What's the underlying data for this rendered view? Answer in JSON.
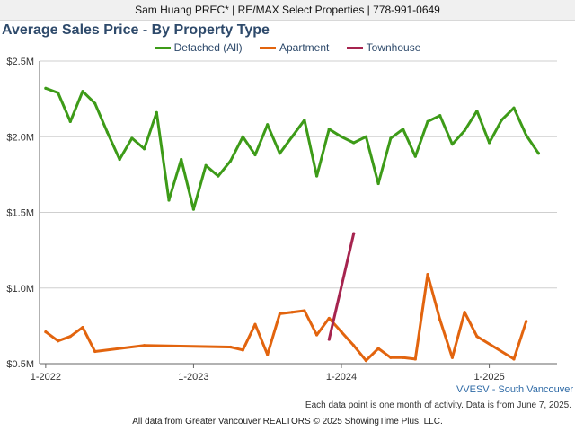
{
  "header": {
    "text": "Sam Huang PREC* | RE/MAX Select Properties | 778-991-0649"
  },
  "region_label": "VVESV - South Vancouver",
  "note": "Each data point is one month of activity. Data is from June 7, 2025.",
  "footer": "All data from Greater Vancouver REALTORS © 2025 ShowingTime Plus, LLC.",
  "chart_data": {
    "type": "line",
    "title": "Average Sales Price - By Property Type",
    "legend_position": "top-center",
    "x_ticks": [
      "1-2022",
      "1-2023",
      "1-2024",
      "1-2025"
    ],
    "y_ticks": [
      "$0.5M",
      "$1.0M",
      "$1.5M",
      "$2.0M",
      "$2.5M"
    ],
    "ylim": [
      0.5,
      2.5
    ],
    "xlim": [
      -0.5,
      41.5
    ],
    "grid": true,
    "series": [
      {
        "name": "Detached (All)",
        "color": "#3d9b18",
        "x": [
          0,
          1,
          2,
          3,
          4,
          5,
          6,
          7,
          8,
          9,
          10,
          11,
          12,
          13,
          14,
          15,
          16,
          17,
          18,
          19,
          20,
          21,
          22,
          23,
          24,
          25,
          26,
          27,
          28,
          29,
          30,
          31,
          32,
          33,
          34,
          35,
          36,
          37,
          38,
          39,
          40
        ],
        "values": [
          2.32,
          2.29,
          2.1,
          2.3,
          2.22,
          2.03,
          1.85,
          1.99,
          1.92,
          2.16,
          1.58,
          1.85,
          1.52,
          1.81,
          1.74,
          1.84,
          2.0,
          1.88,
          2.08,
          1.89,
          2.0,
          2.11,
          1.74,
          2.05,
          2.0,
          1.96,
          2.0,
          1.69,
          1.99,
          2.05,
          1.87,
          2.1,
          2.14,
          1.95,
          2.04,
          2.17,
          1.96,
          2.11,
          2.19,
          2.01,
          1.89
        ]
      },
      {
        "name": "Apartment",
        "color": "#e2640e",
        "x": [
          0,
          1,
          2,
          3,
          4,
          8,
          15,
          16,
          17,
          18,
          19,
          20,
          21,
          22,
          23,
          24,
          25,
          26,
          27,
          28,
          29,
          30,
          31,
          32,
          33,
          34,
          35,
          38,
          39
        ],
        "values": [
          0.71,
          0.65,
          0.68,
          0.74,
          0.58,
          0.62,
          0.61,
          0.59,
          0.76,
          0.56,
          0.83,
          0.84,
          0.85,
          0.69,
          0.8,
          0.71,
          0.62,
          0.52,
          0.6,
          0.54,
          0.54,
          0.53,
          1.09,
          0.79,
          0.54,
          0.84,
          0.68,
          0.53,
          0.78
        ]
      },
      {
        "name": "Townhouse",
        "color": "#a6244f",
        "x": [
          23,
          25
        ],
        "values": [
          0.66,
          1.36
        ]
      }
    ]
  }
}
